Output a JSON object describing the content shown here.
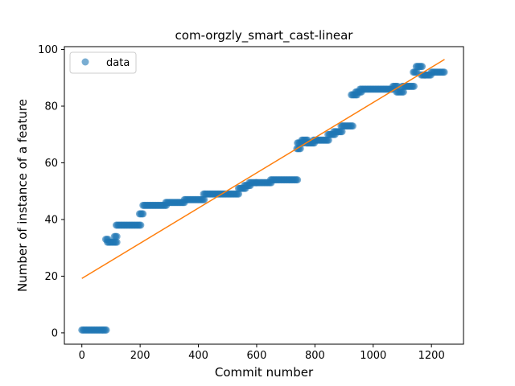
{
  "chart_data": {
    "type": "scatter",
    "title": "com-orgzly_smart_cast-linear",
    "xlabel": "Commit number",
    "ylabel": "Number of instance of a feature",
    "xlim": [
      -60,
      1310
    ],
    "ylim": [
      -4,
      101
    ],
    "xticks": [
      0,
      200,
      400,
      600,
      800,
      1000,
      1200
    ],
    "yticks": [
      0,
      20,
      40,
      60,
      80,
      100
    ],
    "grid": false,
    "legend": {
      "placement": "top-left",
      "entries": [
        "data"
      ]
    },
    "colors": {
      "data": "#1f77b4",
      "fit": "#ff7f0e"
    },
    "series": [
      {
        "name": "data",
        "kind": "scatter",
        "segments": [
          {
            "x0": 0,
            "x1": 85,
            "y": 1
          },
          {
            "x0": 82,
            "x1": 90,
            "y": 33
          },
          {
            "x0": 88,
            "x1": 120,
            "y": 32
          },
          {
            "x0": 112,
            "x1": 122,
            "y": 34
          },
          {
            "x0": 118,
            "x1": 205,
            "y": 38
          },
          {
            "x0": 198,
            "x1": 212,
            "y": 42
          },
          {
            "x0": 210,
            "x1": 290,
            "y": 45
          },
          {
            "x0": 288,
            "x1": 355,
            "y": 46
          },
          {
            "x0": 352,
            "x1": 420,
            "y": 47
          },
          {
            "x0": 418,
            "x1": 540,
            "y": 49
          },
          {
            "x0": 538,
            "x1": 562,
            "y": 51
          },
          {
            "x0": 558,
            "x1": 580,
            "y": 52
          },
          {
            "x0": 575,
            "x1": 600,
            "y": 53
          },
          {
            "x0": 598,
            "x1": 650,
            "y": 53
          },
          {
            "x0": 648,
            "x1": 740,
            "y": 54
          },
          {
            "x0": 738,
            "x1": 750,
            "y": 65
          },
          {
            "x0": 740,
            "x1": 760,
            "y": 67
          },
          {
            "x0": 755,
            "x1": 775,
            "y": 68
          },
          {
            "x0": 770,
            "x1": 800,
            "y": 67
          },
          {
            "x0": 795,
            "x1": 850,
            "y": 68
          },
          {
            "x0": 845,
            "x1": 870,
            "y": 70
          },
          {
            "x0": 865,
            "x1": 895,
            "y": 71
          },
          {
            "x0": 890,
            "x1": 930,
            "y": 73
          },
          {
            "x0": 925,
            "x1": 945,
            "y": 84
          },
          {
            "x0": 940,
            "x1": 960,
            "y": 85
          },
          {
            "x0": 955,
            "x1": 1070,
            "y": 86
          },
          {
            "x0": 1068,
            "x1": 1085,
            "y": 87
          },
          {
            "x0": 1080,
            "x1": 1105,
            "y": 85
          },
          {
            "x0": 1100,
            "x1": 1140,
            "y": 87
          },
          {
            "x0": 1138,
            "x1": 1150,
            "y": 92
          },
          {
            "x0": 1148,
            "x1": 1170,
            "y": 94
          },
          {
            "x0": 1165,
            "x1": 1180,
            "y": 91
          },
          {
            "x0": 1178,
            "x1": 1200,
            "y": 91
          },
          {
            "x0": 1200,
            "x1": 1245,
            "y": 92
          }
        ]
      },
      {
        "name": "",
        "kind": "line",
        "x": [
          0,
          1245
        ],
        "y": [
          19.2,
          96.5
        ]
      }
    ]
  }
}
